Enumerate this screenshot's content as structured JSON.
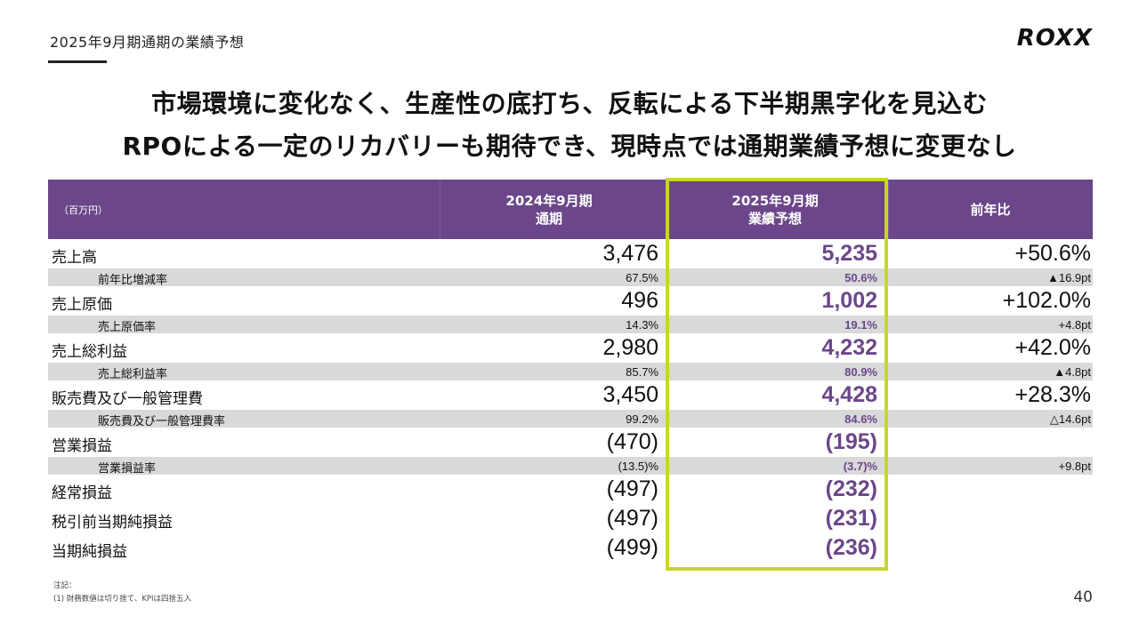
{
  "header": {
    "section_title": "2025年9月期通期の業績予想",
    "logo": "ROXX"
  },
  "headline": {
    "line1": "市場環境に変化なく、生産性の底打ち、反転による下半期黒字化を見込む",
    "line2": "RPOによる一定のリカバリーも期待でき、現時点では通期業績予想に変更なし"
  },
  "table": {
    "unit": "（百万円）",
    "col1": [
      "2024年9月期",
      "通期"
    ],
    "col2": [
      "2025年9月期",
      "業績予想"
    ],
    "col3": "前年比",
    "rows": [
      {
        "type": "major",
        "label": "売上高",
        "v1": "3,476",
        "v2": "5,235",
        "v3": "+50.6%"
      },
      {
        "type": "minor",
        "label": "前年比増減率",
        "v1": "67.5%",
        "v2": "50.6%",
        "v3": "▲16.9pt"
      },
      {
        "type": "major",
        "label": "売上原価",
        "v1": "496",
        "v2": "1,002",
        "v3": "+102.0%"
      },
      {
        "type": "minor",
        "label": "売上原価率",
        "v1": "14.3%",
        "v2": "19.1%",
        "v3": "+4.8pt"
      },
      {
        "type": "major",
        "label": "売上総利益",
        "v1": "2,980",
        "v2": "4,232",
        "v3": "+42.0%"
      },
      {
        "type": "minor",
        "label": "売上総利益率",
        "v1": "85.7%",
        "v2": "80.9%",
        "v3": "▲4.8pt"
      },
      {
        "type": "major",
        "label": "販売費及び一般管理費",
        "v1": "3,450",
        "v2": "4,428",
        "v3": "+28.3%"
      },
      {
        "type": "minor",
        "label": "販売費及び一般管理費率",
        "v1": "99.2%",
        "v2": "84.6%",
        "v3": "△14.6pt"
      },
      {
        "type": "major",
        "label": "営業損益",
        "v1": "(470)",
        "v2": "(195)",
        "v3": ""
      },
      {
        "type": "minor",
        "label": "営業損益率",
        "v1": "(13.5)%",
        "v2": "(3.7)%",
        "v3": "+9.8pt"
      },
      {
        "type": "major",
        "label": "経常損益",
        "v1": "(497)",
        "v2": "(232)",
        "v3": ""
      },
      {
        "type": "major",
        "label": "税引前当期純損益",
        "v1": "(497)",
        "v2": "(231)",
        "v3": ""
      },
      {
        "type": "major",
        "label": "当期純損益",
        "v1": "(499)",
        "v2": "(236)",
        "v3": ""
      }
    ]
  },
  "footnote": {
    "title": "注記：",
    "line1": "(1) 財務数値は切り捨て、KPIは四捨五入"
  },
  "page_number": "40",
  "colors": {
    "header_purple": "#6b478a",
    "highlight_yellow": "#c8d432",
    "minor_row_gray": "#d9d9d9"
  }
}
